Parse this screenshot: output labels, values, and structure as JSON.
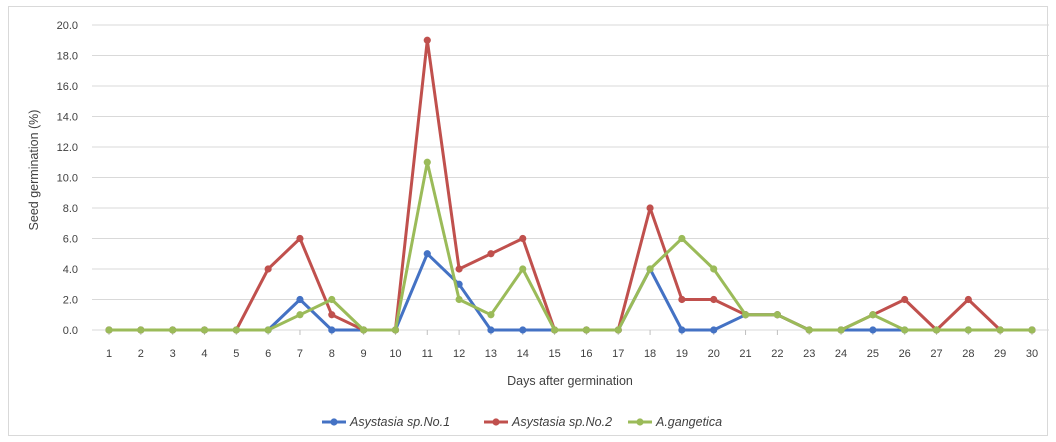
{
  "chart_data": {
    "type": "line",
    "title": "",
    "xlabel": "Days after germination",
    "ylabel": "Seed germination (%)",
    "ylim": [
      0,
      20
    ],
    "y_ticks": [
      "0.0",
      "2.0",
      "4.0",
      "6.0",
      "8.0",
      "10.0",
      "12.0",
      "14.0",
      "16.0",
      "18.0",
      "20.0"
    ],
    "categories": [
      "1",
      "2",
      "3",
      "4",
      "5",
      "6",
      "7",
      "8",
      "9",
      "10",
      "11",
      "12",
      "13",
      "14",
      "15",
      "16",
      "17",
      "18",
      "19",
      "20",
      "21",
      "22",
      "23",
      "24",
      "25",
      "26",
      "27",
      "28",
      "29",
      "30"
    ],
    "grid": "horizontal",
    "legend_position": "bottom",
    "series": [
      {
        "name": "Asystasia sp.No.1",
        "color": "#4472c4",
        "values": [
          0,
          0,
          0,
          0,
          0,
          0,
          2,
          0,
          0,
          0,
          5,
          3,
          0,
          0,
          0,
          0,
          0,
          4,
          0,
          0,
          1,
          1,
          0,
          0,
          0,
          0,
          0,
          0,
          0,
          0
        ]
      },
      {
        "name": "Asystasia sp.No.2",
        "color": "#c0504d",
        "values": [
          0,
          0,
          0,
          0,
          0,
          4,
          6,
          1,
          0,
          0,
          19,
          4,
          5,
          6,
          0,
          0,
          0,
          8,
          2,
          2,
          1,
          1,
          0,
          0,
          1,
          2,
          0,
          2,
          0,
          0
        ]
      },
      {
        "name": "A.gangetica",
        "color": "#9bbb59",
        "values": [
          0,
          0,
          0,
          0,
          0,
          0,
          1,
          2,
          0,
          0,
          11,
          2,
          1,
          4,
          0,
          0,
          0,
          4,
          6,
          4,
          1,
          1,
          0,
          0,
          1,
          0,
          0,
          0,
          0,
          0
        ]
      }
    ]
  }
}
